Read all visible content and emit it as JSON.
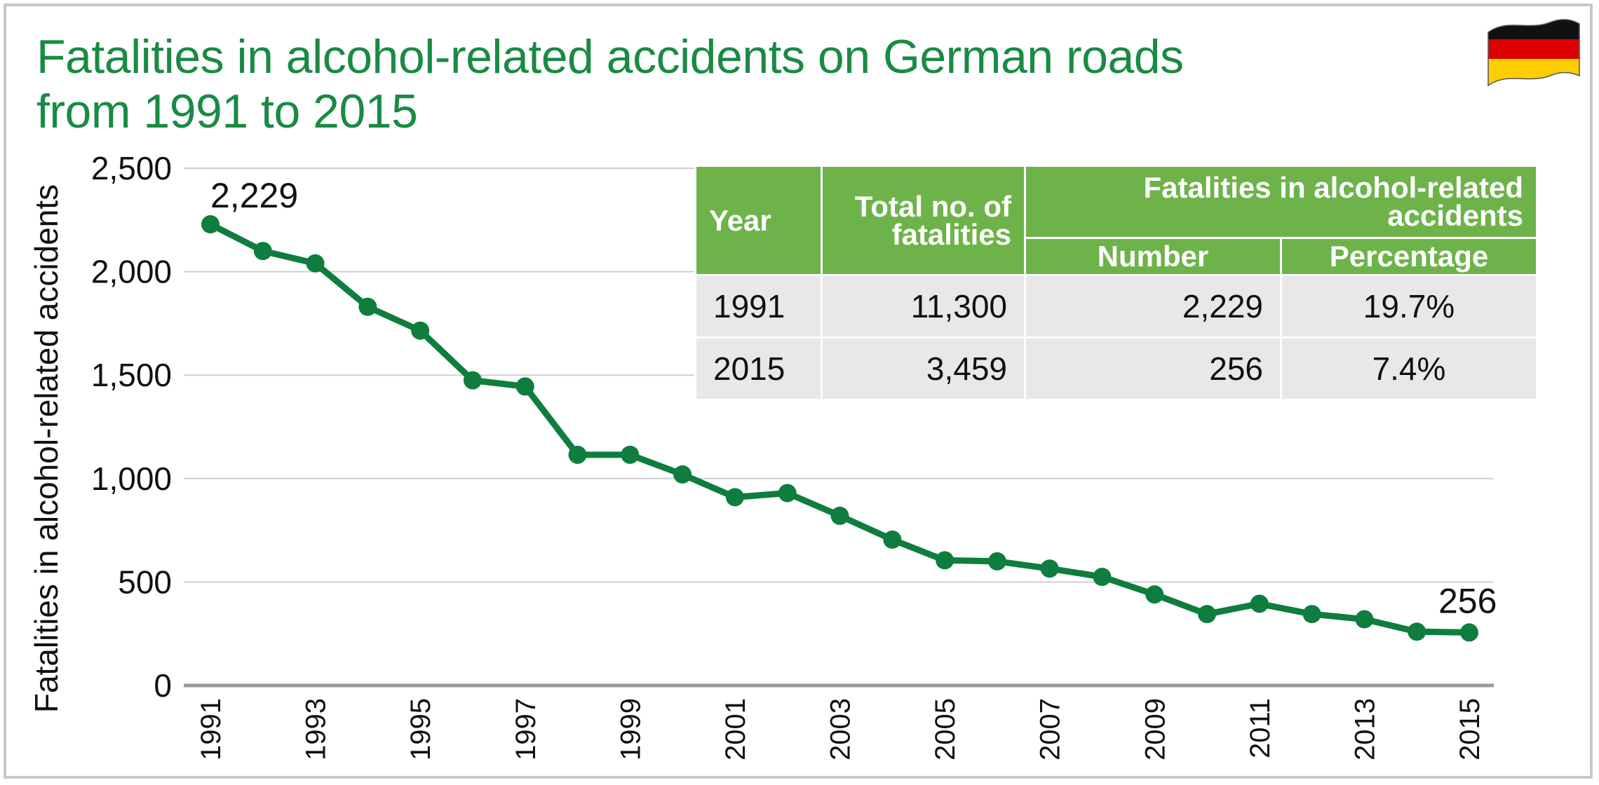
{
  "chart_data": {
    "type": "line",
    "title": "Fatalities in alcohol-related accidents on German roads from 1991 to 2015",
    "title_lines": [
      "Fatalities in alcohol-related accidents on German roads",
      "from 1991 to 2015"
    ],
    "ylabel": "Fatalities in alcohol-related accidents",
    "xlabel": "",
    "ylim": [
      0,
      2500
    ],
    "y_ticks": [
      0,
      500,
      1000,
      1500,
      2000,
      2500
    ],
    "y_tick_labels": [
      "0",
      "500",
      "1,000",
      "1,500",
      "2,000",
      "2,500"
    ],
    "x": [
      1991,
      1992,
      1993,
      1994,
      1995,
      1996,
      1997,
      1998,
      1999,
      2000,
      2001,
      2002,
      2003,
      2004,
      2005,
      2006,
      2007,
      2008,
      2009,
      2010,
      2011,
      2012,
      2013,
      2014,
      2015
    ],
    "x_tick_labels": [
      "1991",
      "1993",
      "1995",
      "1997",
      "1999",
      "2001",
      "2003",
      "2005",
      "2007",
      "2009",
      "2011",
      "2013",
      "2015"
    ],
    "series": [
      {
        "values": [
          2229,
          2100,
          2040,
          1830,
          1715,
          1475,
          1445,
          1115,
          1115,
          1020,
          910,
          930,
          820,
          705,
          605,
          600,
          565,
          525,
          440,
          345,
          395,
          345,
          320,
          260,
          256
        ]
      }
    ],
    "annotations": [
      {
        "x": 1991,
        "y": 2229,
        "text": "2,229"
      },
      {
        "x": 2015,
        "y": 256,
        "text": "256"
      }
    ],
    "grid": true,
    "line_color": "#0e7d3e",
    "grid_color": "#cfcfcf",
    "axis_color": "#999999"
  },
  "table": {
    "headers": {
      "year": "Year",
      "total": "Total no. of fatalities",
      "group": "Fatalities in alcohol-related accidents",
      "number": "Number",
      "percentage": "Percentage"
    },
    "rows": [
      {
        "year": "1991",
        "total": "11,300",
        "number": "2,229",
        "percentage": "19.7%"
      },
      {
        "year": "2015",
        "total": "3,459",
        "number": "256",
        "percentage": "7.4%"
      }
    ],
    "header_color": "#6db34a",
    "cell_color": "#e8e8e8"
  },
  "flag": {
    "icon": "germany-flag-icon",
    "colors": [
      "#000000",
      "#dd0000",
      "#ffce00"
    ]
  },
  "title_color": "#1a8a44"
}
